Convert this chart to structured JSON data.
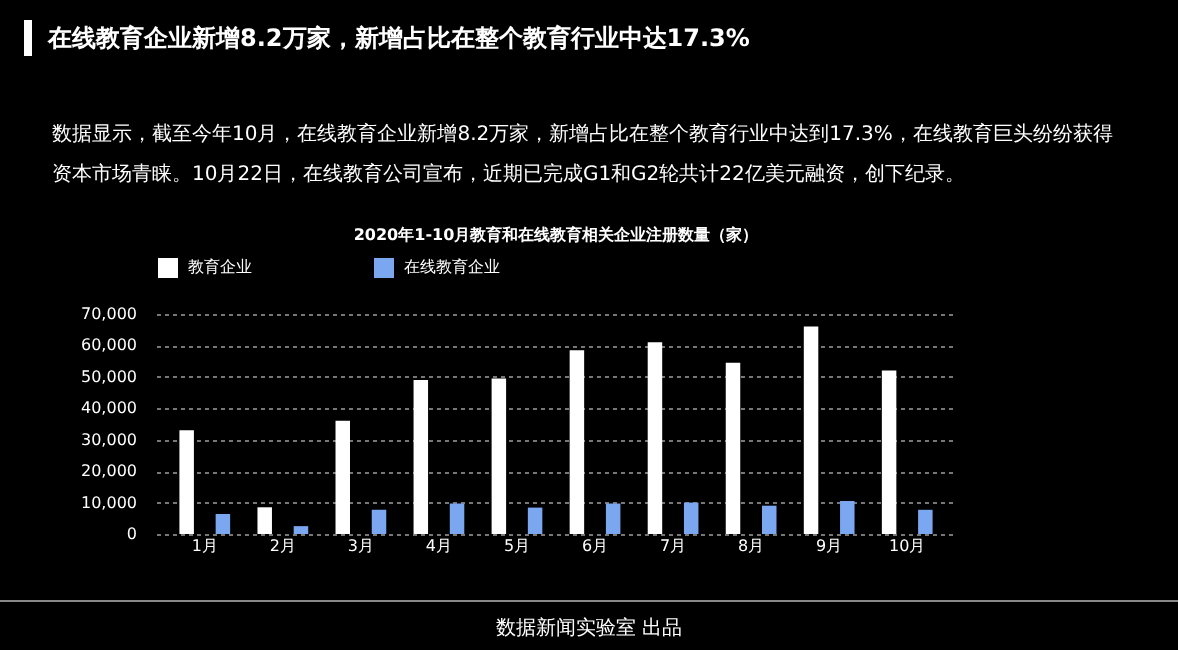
{
  "chart_data": {
    "type": "bar",
    "title": "2020年1-10月教育和在线教育相关企业注册数量（家）",
    "annotations": [
      "在线教育企业新增8.2万家，新增占比在整个教育行业中达17.3%",
      "数据显示，截至今年10月，在线教育企业新增8.2万家，新增占比在整个教育行业中达到17.3%，在线教育巨头纷纷获得资本市场青睐。10月22日，在线教育公司宣布，近期已完成G1和G2轮共计22亿美元融资，创下纪录。",
      "数据新闻实验室 出品"
    ],
    "categories": [
      "1月",
      "2月",
      "3月",
      "4月",
      "5月",
      "6月",
      "7月",
      "8月",
      "9月",
      "10月"
    ],
    "series": [
      {
        "name": "教育企业",
        "color": "#ffffff",
        "values": [
          33000,
          8500,
          36000,
          49000,
          49500,
          58500,
          61000,
          54500,
          66000,
          52000
        ]
      },
      {
        "name": "在线教育企业",
        "color": "#7aa7f0",
        "values": [
          6400,
          2500,
          7700,
          9700,
          8400,
          9700,
          10000,
          9000,
          10500,
          7700
        ]
      }
    ],
    "ylim": [
      0,
      70000
    ],
    "yticks": [
      0,
      {
        "value": 10000,
        "label": "10,000"
      },
      {
        "value": 20000,
        "label": "20,000"
      },
      {
        "value": 30000,
        "label": "30,000"
      },
      {
        "value": 40000,
        "label": "40,000"
      },
      {
        "value": 50000,
        "label": "50,000"
      },
      {
        "value": 60000,
        "label": "60,000"
      },
      {
        "value": 70000,
        "label": "70,000"
      }
    ],
    "grid": "y",
    "legend": "top"
  }
}
